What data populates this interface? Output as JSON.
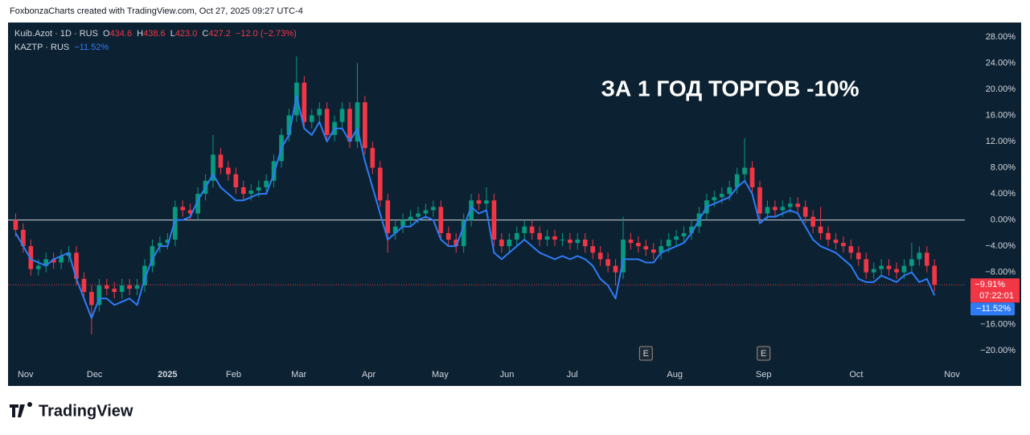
{
  "header": "FoxbonzaCharts created with TradingView.com, Oct 27, 2025 09:27 UTC-4",
  "footer_logo": "TradingView",
  "chart_data": {
    "type": "candlestick",
    "annotation": "ЗА 1 ГОД ТОРГОВ -10%",
    "legend": {
      "main": "Kuib.Azot · 1D · RUS",
      "o_label": "O",
      "o": "434.6",
      "h_label": "H",
      "h": "438.6",
      "l_label": "L",
      "l": "423.0",
      "c_label": "C",
      "c": "427.2",
      "change": "−12.0 (−2.73%)",
      "second": "KAZTP · RUS",
      "second_change": "−11.52%"
    },
    "xlim": [
      -1,
      125
    ],
    "ylim": [
      -22.3,
      30.2
    ],
    "xticks": [
      {
        "value": 1.3,
        "label": "Nov"
      },
      {
        "value": 10.4,
        "label": "Dec"
      },
      {
        "value": 20.0,
        "label": "2025"
      },
      {
        "value": 28.7,
        "label": "Feb"
      },
      {
        "value": 37.3,
        "label": "Mar"
      },
      {
        "value": 46.5,
        "label": "Apr"
      },
      {
        "value": 55.9,
        "label": "May"
      },
      {
        "value": 64.7,
        "label": "Jun"
      },
      {
        "value": 73.3,
        "label": "Jul"
      },
      {
        "value": 86.8,
        "label": "Aug"
      },
      {
        "value": 98.5,
        "label": "Sep"
      },
      {
        "value": 110.7,
        "label": "Oct"
      },
      {
        "value": 123.3,
        "label": "Nov"
      }
    ],
    "yticks": [
      {
        "value": 28,
        "label": "28.00%"
      },
      {
        "value": 24,
        "label": "24.00%"
      },
      {
        "value": 20,
        "label": "20.00%"
      },
      {
        "value": 16,
        "label": "16.00%"
      },
      {
        "value": 12,
        "label": "12.00%"
      },
      {
        "value": 8,
        "label": "8.00%"
      },
      {
        "value": 4,
        "label": "4.00%"
      },
      {
        "value": 0,
        "label": "0.00%"
      },
      {
        "value": -4,
        "label": "−4.00%"
      },
      {
        "value": -8,
        "label": "−8.00%"
      },
      {
        "value": -16,
        "label": "−16.00%"
      },
      {
        "value": -20,
        "label": "−20.00%"
      }
    ],
    "events": [
      {
        "x": 83,
        "label": "E"
      },
      {
        "x": 98.5,
        "label": "E"
      }
    ],
    "x": [
      0,
      1,
      2,
      3,
      4,
      5,
      6,
      7,
      8,
      9,
      10,
      11,
      12,
      13,
      14,
      15,
      16,
      17,
      18,
      19,
      20,
      21,
      22,
      23,
      24,
      25,
      26,
      27,
      28,
      29,
      30,
      31,
      32,
      33,
      34,
      35,
      36,
      37,
      38,
      39,
      40,
      41,
      42,
      43,
      44,
      45,
      46,
      47,
      48,
      49,
      50,
      51,
      52,
      53,
      54,
      55,
      56,
      57,
      58,
      59,
      60,
      61,
      62,
      63,
      64,
      65,
      66,
      67,
      68,
      69,
      70,
      71,
      72,
      73,
      74,
      75,
      76,
      77,
      78,
      79,
      80,
      81,
      82,
      83,
      84,
      85,
      86,
      87,
      88,
      89,
      90,
      91,
      92,
      93,
      94,
      95,
      96,
      97,
      98,
      99,
      100,
      101,
      102,
      103,
      104,
      105,
      106,
      107,
      108,
      109,
      110,
      111,
      112,
      113,
      114,
      115,
      116,
      117,
      118,
      119,
      120,
      121
    ],
    "series": [
      {
        "name": "Kuib.Azot",
        "type": "candlestick",
        "up_color": "#089981",
        "down_color": "#f23645",
        "last_label": "−9.91%",
        "countdown": "07:22:01",
        "open": [
          0,
          -1.5,
          -4,
          -7.5,
          -7,
          -6,
          -6.5,
          -5.5,
          -5,
          -9,
          -11,
          -13,
          -10,
          -10.5,
          -11,
          -10,
          -10.5,
          -10,
          -7,
          -4,
          -3.5,
          -3,
          2,
          1.5,
          1,
          4,
          6,
          10,
          8,
          7,
          5,
          4,
          4.5,
          5,
          6,
          9,
          13,
          16,
          21,
          15,
          16,
          17,
          13,
          15,
          17,
          12,
          18,
          11,
          8,
          3,
          -2,
          -1,
          0,
          0.5,
          1,
          1.5,
          2,
          -2,
          -3,
          -4,
          0,
          3,
          2.5,
          3,
          -3,
          -4,
          -3,
          -2,
          -1,
          -2,
          -3,
          -2.5,
          -3,
          -3,
          -3.5,
          -3,
          -4,
          -5,
          -6,
          -7,
          -8,
          -3,
          -3.5,
          -4,
          -4.5,
          -5,
          -4,
          -3,
          -2.5,
          -2,
          -1,
          1,
          3,
          3.5,
          4,
          5,
          7,
          8,
          5,
          1,
          2,
          1.5,
          2,
          2.5,
          2,
          0.5,
          -1,
          -2,
          -3,
          -3.5,
          -4,
          -5,
          -6,
          -8,
          -7.5,
          -7,
          -7.5,
          -8,
          -7,
          -6,
          -5,
          -7
        ],
        "high": [
          1,
          -0.5,
          -3,
          -6,
          -5,
          -5,
          -4.5,
          -4,
          -4,
          -8,
          -10,
          -9,
          -9,
          -9.5,
          -9,
          -9,
          -9,
          -6,
          -3,
          -2.5,
          -2,
          3,
          3,
          2.5,
          5,
          7,
          13,
          11,
          9,
          8,
          6,
          5.5,
          6,
          7,
          10,
          14,
          17,
          25,
          22,
          17,
          18,
          18,
          16,
          18,
          18,
          24,
          19,
          12,
          9,
          4,
          0,
          1,
          1.5,
          2,
          2.5,
          3,
          3,
          -1,
          -2,
          1,
          4,
          4,
          5,
          4,
          -2,
          -2,
          -1,
          0,
          0,
          -1,
          -1.5,
          -1.5,
          -2,
          -2,
          -2,
          -2,
          -3,
          -4,
          -5,
          -6,
          0.5,
          -2,
          -2.5,
          -3,
          -3.5,
          -3,
          -2,
          -1.5,
          -1,
          0,
          2,
          4,
          4.5,
          5,
          6,
          8,
          12.5,
          9,
          6,
          3,
          3,
          3,
          3.5,
          3.5,
          3,
          1.5,
          2,
          -1,
          -2,
          -2.5,
          -3,
          -4,
          -5,
          -6.5,
          -6,
          -6,
          -6.5,
          -6,
          -3.5,
          -4,
          -4,
          -6
        ],
        "low": [
          -2.5,
          -5,
          -8.5,
          -8.5,
          -8,
          -7.5,
          -7.5,
          -6.5,
          -10,
          -12,
          -17.5,
          -14,
          -11.5,
          -12,
          -12,
          -11.5,
          -11.5,
          -11,
          -8,
          -5,
          -4.5,
          -4,
          0.5,
          0,
          0,
          3,
          5,
          7,
          6,
          4,
          3,
          3,
          3.5,
          4,
          5,
          8,
          12,
          15,
          14,
          14,
          15,
          12,
          12,
          14,
          11,
          11,
          10,
          7,
          2,
          -5,
          -3,
          -2,
          -1,
          -0.5,
          0,
          0.5,
          -3,
          -4,
          -5,
          -5,
          -1,
          1.5,
          1.5,
          -4,
          -5,
          -5,
          -4,
          -3,
          -3,
          -4,
          -4,
          -4,
          -4,
          -4.5,
          -4.5,
          -5,
          -6,
          -7,
          -8,
          -10,
          -9,
          -4.5,
          -5,
          -5.5,
          -6,
          -6,
          -5,
          -4,
          -3.5,
          -3,
          -2,
          0,
          2,
          2.5,
          3,
          4,
          6,
          4,
          0,
          0,
          0.5,
          0.5,
          1,
          1,
          -0.5,
          -2,
          -3,
          -4,
          -4.5,
          -5,
          -6,
          -7,
          -9,
          -9,
          -8.5,
          -8.5,
          -9,
          -9,
          -8,
          -7,
          -8,
          -10.91
        ],
        "close": [
          -1.5,
          -4,
          -7.5,
          -7,
          -6,
          -6.5,
          -5.5,
          -5,
          -9,
          -11,
          -13,
          -10,
          -10.5,
          -11,
          -10,
          -10.5,
          -10,
          -7,
          -4,
          -3.5,
          -3,
          2,
          1.5,
          1,
          4,
          6,
          10,
          8,
          7,
          5,
          4,
          4.5,
          5,
          6,
          9,
          13,
          16,
          21,
          15,
          16,
          17,
          13,
          15,
          17,
          12,
          18,
          11,
          8,
          3,
          -2,
          -1,
          0,
          0.5,
          1,
          1.5,
          2,
          -2,
          -3,
          -4,
          0,
          3,
          2.5,
          3,
          -3,
          -4,
          -3,
          -2,
          -1,
          -2,
          -3,
          -2.5,
          -3,
          -3,
          -3.5,
          -3,
          -4,
          -5,
          -6,
          -7,
          -8,
          -3,
          -3.5,
          -4,
          -4.5,
          -5,
          -4,
          -3,
          -2.5,
          -2,
          -1,
          1,
          3,
          3.5,
          4,
          5,
          7,
          8,
          5,
          1,
          2,
          1.5,
          2,
          2.5,
          2,
          0.5,
          -1,
          -2,
          -3,
          -3.5,
          -4,
          -5,
          -6,
          -8,
          -7.5,
          -7,
          -7.5,
          -8,
          -7,
          -6,
          -5,
          -7,
          -9.91
        ]
      },
      {
        "name": "KAZTP",
        "type": "line",
        "color": "#2f7bf5",
        "last_label": "−11.52%",
        "values": [
          -2,
          -4,
          -6,
          -6.5,
          -7,
          -6,
          -5.5,
          -5,
          -9,
          -12,
          -15,
          -12,
          -12,
          -13,
          -12.5,
          -12,
          -13,
          -9,
          -6,
          -4,
          -4,
          0,
          0,
          0.5,
          3,
          5,
          7,
          5,
          4,
          3,
          3,
          3.5,
          4,
          4,
          7,
          11,
          13,
          19,
          14,
          13,
          15,
          12,
          14,
          14,
          12,
          14,
          9,
          5,
          1,
          -3,
          -2,
          -1,
          -1,
          0,
          0.5,
          0,
          -3,
          -4,
          -4,
          -1,
          2,
          1,
          1.5,
          -5,
          -6,
          -5,
          -4,
          -3,
          -4,
          -5,
          -5.5,
          -6,
          -5.5,
          -6,
          -5.5,
          -6,
          -7,
          -9,
          -10,
          -12,
          -6,
          -6,
          -6,
          -6.5,
          -6.5,
          -5,
          -4.5,
          -4,
          -3.5,
          -2,
          0,
          2,
          2.5,
          3,
          3.5,
          5,
          6,
          4,
          -0.5,
          0.5,
          0.5,
          1,
          1.5,
          1,
          -1,
          -3,
          -4,
          -4.5,
          -5,
          -6,
          -7,
          -9,
          -9.5,
          -9.5,
          -8.5,
          -9,
          -9.5,
          -8.5,
          -8,
          -9.5,
          -9,
          -11.52
        ]
      }
    ]
  }
}
